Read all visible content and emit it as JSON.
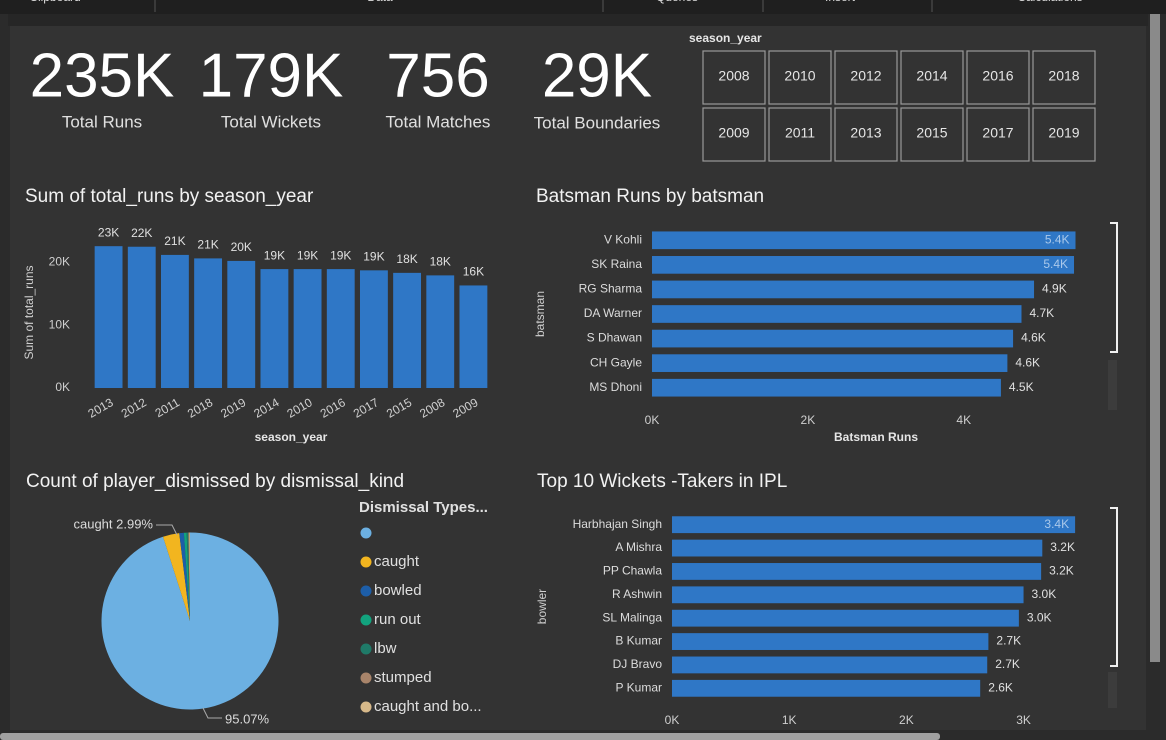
{
  "ribbon": {
    "tabs": [
      "Clipboard",
      "Data",
      "Queries",
      "Insert",
      "Calculations"
    ]
  },
  "cards": [
    {
      "value": "235K",
      "label": "Total Runs"
    },
    {
      "value": "179K",
      "label": "Total Wickets"
    },
    {
      "value": "756",
      "label": "Total Matches"
    },
    {
      "value": "29K",
      "label": "Total Boundaries"
    }
  ],
  "slicer": {
    "title": "season_year",
    "items": [
      "2008",
      "2010",
      "2012",
      "2014",
      "2016",
      "2018",
      "2009",
      "2011",
      "2013",
      "2015",
      "2017",
      "2019"
    ]
  },
  "chart_data": [
    {
      "type": "bar",
      "title": "Sum of total_runs by season_year",
      "xlabel": "season_year",
      "ylabel": "Sum of total_runs",
      "categories": [
        "2013",
        "2012",
        "2011",
        "2018",
        "2019",
        "2014",
        "2010",
        "2016",
        "2017",
        "2015",
        "2008",
        "2009"
      ],
      "values": [
        22541,
        22453,
        21154,
        20600,
        20200,
        18900,
        18900,
        18900,
        18700,
        18300,
        17900,
        16300
      ],
      "value_labels": [
        "23K",
        "22K",
        "21K",
        "21K",
        "20K",
        "19K",
        "19K",
        "19K",
        "19K",
        "18K",
        "18K",
        "16K"
      ],
      "color": "#2f77c6",
      "ylim": [
        0,
        24000
      ],
      "yticks": [
        {
          "value": 0,
          "label": "0K"
        },
        {
          "value": 10000,
          "label": "10K"
        },
        {
          "value": 20000,
          "label": "20K"
        }
      ]
    },
    {
      "type": "hbar",
      "title": "Batsman Runs by batsman",
      "xlabel": "Batsman Runs",
      "ylabel": "batsman",
      "categories": [
        "V Kohli",
        "SK Raina",
        "RG Sharma",
        "DA Warner",
        "S Dhawan",
        "CH Gayle",
        "MS Dhoni"
      ],
      "values": [
        5434,
        5415,
        4902,
        4741,
        4633,
        4560,
        4477
      ],
      "value_labels": [
        "5.4K",
        "5.4K",
        "4.9K",
        "4.7K",
        "4.6K",
        "4.6K",
        "4.5K"
      ],
      "color": "#2f77c6",
      "xlim": [
        0,
        5620
      ],
      "xticks": [
        {
          "value": 0,
          "label": "0K"
        },
        {
          "value": 2000,
          "label": "2K"
        },
        {
          "value": 4000,
          "label": "4K"
        }
      ]
    },
    {
      "type": "pie",
      "title": "Count of player_dismissed by dismissal_kind",
      "legend_title": "Dismissal Types...",
      "categories": [
        null,
        "caught",
        "bowled",
        "run out",
        "lbw",
        "stumped",
        "caught and bo..."
      ],
      "values": [
        95.07,
        2.99,
        0.84,
        0.5,
        0.3,
        0.15,
        0.15
      ],
      "value_labels": [
        "95.07%",
        "caught 2.99%",
        null,
        null,
        null,
        null,
        null
      ],
      "colors": [
        "#6cb0e2",
        "#f2b51f",
        "#1d5ea8",
        "#12a37e",
        "#1f7a68",
        "#a8846a",
        "#d7b98a"
      ]
    },
    {
      "type": "hbar",
      "title": "Top 10 Wickets -Takers in IPL",
      "ylabel": "bowler",
      "categories": [
        "Harbhajan Singh",
        "A Mishra",
        "PP Chawla",
        "R Ashwin",
        "SL Malinga",
        "B Kumar",
        "DJ Bravo",
        "P Kumar"
      ],
      "values": [
        3440,
        3160,
        3150,
        3000,
        2960,
        2700,
        2690,
        2630
      ],
      "value_labels": [
        "3.4K",
        "3.2K",
        "3.2K",
        "3.0K",
        "3.0K",
        "2.7K",
        "2.7K",
        "2.6K"
      ],
      "color": "#2f77c6",
      "xlim": [
        0,
        3550
      ],
      "xticks": [
        {
          "value": 0,
          "label": "0K"
        },
        {
          "value": 1000,
          "label": "1K"
        },
        {
          "value": 2000,
          "label": "2K"
        },
        {
          "value": 3000,
          "label": "3K"
        }
      ]
    }
  ]
}
